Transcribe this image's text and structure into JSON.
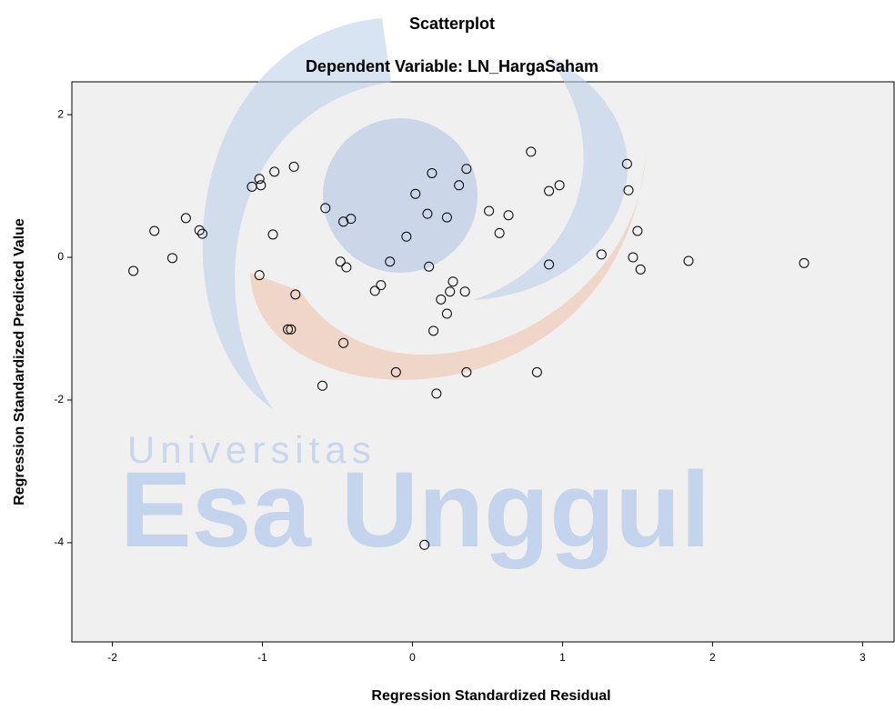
{
  "chart_data": {
    "type": "scatter",
    "title": "Scatterplot",
    "subtitle": "Dependent Variable: LN_HargaSaham",
    "x_label": "Regression Standardized Residual",
    "y_label": "Regression Standardized Predicted Value",
    "xlim": [
      -2.27,
      3.21
    ],
    "xticks": [
      -2,
      -1,
      0,
      1,
      2,
      3
    ],
    "ylim": [
      -5.39,
      2.46
    ],
    "yticks": [
      -4,
      -2,
      0,
      2
    ],
    "grid": false,
    "color": "#000000",
    "background": "#f0f0f0",
    "x": [
      -1.86,
      -1.72,
      -1.6,
      -1.51,
      -1.42,
      -1.4,
      -1.07,
      -1.02,
      -1.01,
      -0.92,
      -0.93,
      -1.02,
      -0.79,
      -0.78,
      -0.83,
      -0.81,
      -0.58,
      -0.6,
      -0.46,
      -0.41,
      -0.48,
      -0.44,
      -0.46,
      -0.25,
      -0.21,
      -0.15,
      -0.11,
      -0.04,
      0.02,
      0.1,
      0.13,
      0.11,
      0.14,
      0.16,
      0.19,
      0.23,
      0.25,
      0.27,
      0.23,
      0.08,
      0.31,
      0.36,
      0.35,
      0.36,
      0.51,
      0.58,
      0.64,
      0.79,
      0.83,
      0.91,
      0.91,
      0.98,
      1.26,
      1.43,
      1.44,
      1.47,
      1.5,
      1.52,
      1.84,
      2.61
    ],
    "values": [
      -0.19,
      0.37,
      -0.01,
      0.55,
      0.38,
      0.33,
      0.99,
      1.1,
      1.01,
      1.2,
      0.32,
      -0.25,
      1.27,
      -0.52,
      -1.01,
      -1.01,
      0.69,
      -1.8,
      0.5,
      0.54,
      -0.06,
      -0.14,
      -1.2,
      -0.47,
      -0.39,
      -0.06,
      -1.61,
      0.29,
      0.89,
      0.61,
      1.18,
      -0.13,
      -1.03,
      -1.91,
      -0.59,
      0.56,
      -0.48,
      -0.34,
      -0.79,
      -4.03,
      1.01,
      1.24,
      -0.48,
      -1.61,
      0.65,
      0.34,
      0.59,
      1.48,
      -1.61,
      0.93,
      -0.1,
      1.01,
      0.04,
      1.31,
      0.94,
      0.0,
      0.37,
      -0.17,
      -0.05,
      -0.08
    ]
  },
  "watermark": {
    "small": "Universitas",
    "large": "Esa Unggul"
  }
}
